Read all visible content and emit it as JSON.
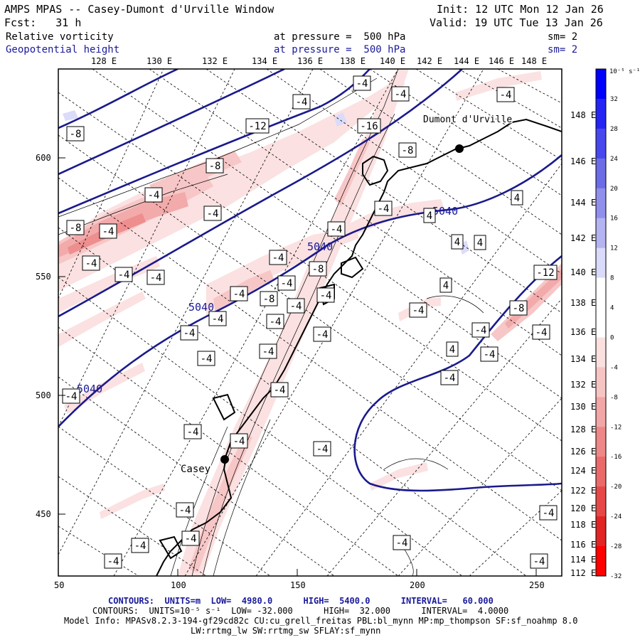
{
  "header": {
    "title": "AMPS MPAS -- Casey-Dumont d'Urville Window",
    "init": "Init: 12 UTC Mon 12 Jan 26",
    "forecast": "Fcst:   31 h",
    "valid": "Valid: 19 UTC Tue 13 Jan 26",
    "field1": {
      "name": "Relative vorticity",
      "level": "at pressure =  500 hPa",
      "smooth": "sm= 2"
    },
    "field2": {
      "name": "Geopotential height",
      "level": "at pressure =  500 hPa",
      "smooth": "sm= 2"
    }
  },
  "axes": {
    "top_lon_labels": [
      "128 E",
      "130 E",
      "132 E",
      "134 E",
      "136 E",
      "138 E",
      "140 E",
      "142 E",
      "144 E",
      "146 E",
      "148 E"
    ],
    "right_lon_labels": [
      "148 E",
      "146 E",
      "144 E",
      "142 E",
      "140 E",
      "138 E",
      "136 E",
      "134 E",
      "132 E",
      "130 E",
      "128 E",
      "126 E",
      "124 E",
      "122 E",
      "120 E",
      "118 E",
      "116 E",
      "114 E",
      "112 E"
    ],
    "x_ticks": [
      "50",
      "100",
      "150",
      "200",
      "250"
    ],
    "y_ticks": [
      "600",
      "550",
      "500",
      "450"
    ]
  },
  "colorbar": {
    "unit": "10⁻⁵ s⁻¹",
    "labels": [
      "32",
      "28",
      "24",
      "20",
      "16",
      "12",
      "8",
      "4",
      "0",
      "-4",
      "-8",
      "-12",
      "-16",
      "-20",
      "-24",
      "-28",
      "-32"
    ],
    "colors": [
      "#0000ff",
      "#2424f5",
      "#4848ef",
      "#6c6ce6",
      "#9090ec",
      "#b4b4f2",
      "#dadafa",
      "#ffffff",
      "#ffffff",
      "#fbe0e0",
      "#f7c4c4",
      "#f2a6a6",
      "#ee8888",
      "#ea6a6a",
      "#e64848",
      "#e12424",
      "#ff0000"
    ]
  },
  "map": {
    "stations": [
      {
        "name": "Dumont d'Urville"
      },
      {
        "name": "Casey"
      }
    ],
    "height_labels": [
      "5040",
      "5040",
      "5040",
      "5040"
    ],
    "vort_labels": [
      "-4",
      "-4",
      "-4",
      "-4",
      "-8",
      "-12",
      "-16",
      "-8",
      "-8",
      "-4",
      "-4",
      "-8",
      "-4",
      "-4",
      "-4",
      "-4",
      "-4",
      "-4",
      "-4",
      "-8",
      "-4",
      "-4",
      "-4",
      "-4",
      "-4",
      "-4",
      "-4",
      "-4",
      "-4",
      "-4",
      "-4",
      "-4",
      "-4",
      "-4",
      "-4",
      "-4",
      "-4",
      "-4",
      "4",
      "4",
      "4",
      "4",
      "4",
      "4",
      "-12",
      "-8",
      "-4",
      "-4",
      "-4",
      "-4",
      "-4",
      "-4",
      "-4",
      "-4",
      "-8",
      "-4",
      "-4"
    ]
  },
  "footer": {
    "contours1": "CONTOURS:  UNITS=m  LOW=  4980.0      HIGH=  5400.0      INTERVAL=   60.000",
    "contours2": "CONTOURS:  UNITS=10⁻⁵ s⁻¹  LOW= -32.000      HIGH=  32.000      INTERVAL=  4.0000",
    "model_info": "Model Info: MPASv8.2.3-194-gf29cd82c CU:cu_grell_freitas PBL:bl_mynn MP:mp_thompson SF:sf_noahmp 8.0",
    "model_info2": "LW:rrtmg_lw SW:rrtmg_sw SFLAY:sf_mynn"
  }
}
